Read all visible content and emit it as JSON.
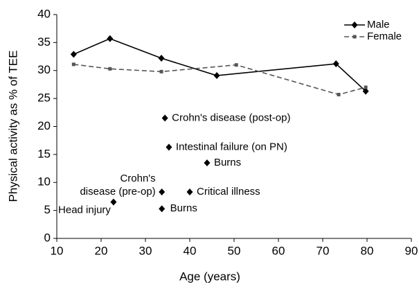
{
  "chart_data": {
    "type": "line",
    "x_label": "Age (years)",
    "y_label": "Physical activity as % of TEE",
    "xlim": [
      10,
      90
    ],
    "xticks": [
      10,
      20,
      30,
      40,
      50,
      60,
      70,
      80,
      90
    ],
    "ylim": [
      0,
      40
    ],
    "yticks": [
      0,
      5,
      10,
      15,
      20,
      25,
      30,
      35,
      40
    ],
    "grid": false,
    "legend": "upper right",
    "series": [
      {
        "name": "Male",
        "color": "#000000",
        "dash": false,
        "marker": "diamond",
        "x": [
          13.8,
          22,
          33.6,
          46.1,
          73,
          79.7
        ],
        "values": [
          32.9,
          35.7,
          32.2,
          29.1,
          31.2,
          26.3
        ]
      },
      {
        "name": "Female",
        "color": "#555555",
        "dash": true,
        "marker": "square",
        "x": [
          13.8,
          22,
          33.6,
          50.5,
          73.6,
          79.7
        ],
        "values": [
          31.1,
          30.3,
          29.8,
          31.0,
          25.7,
          27.0
        ]
      }
    ],
    "points": [
      {
        "label": [
          "Crohn's disease (post-op)"
        ],
        "x": 34.4,
        "y": 21.5
      },
      {
        "label": [
          "Intestinal failure (on PN)"
        ],
        "x": 35.3,
        "y": 16.3
      },
      {
        "label": [
          "Burns"
        ],
        "x": 43.9,
        "y": 13.5
      },
      {
        "label": [
          "Critical illness"
        ],
        "x": 40,
        "y": 8.3
      },
      {
        "label": [
          "Crohn's",
          "disease (pre-op)"
        ],
        "x": 33.7,
        "y": 8.3
      },
      {
        "label": [
          "Burns"
        ],
        "x": 33.7,
        "y": 5.3
      },
      {
        "label": [
          "Head injury"
        ],
        "x": 22.8,
        "y": 6.5
      }
    ]
  }
}
